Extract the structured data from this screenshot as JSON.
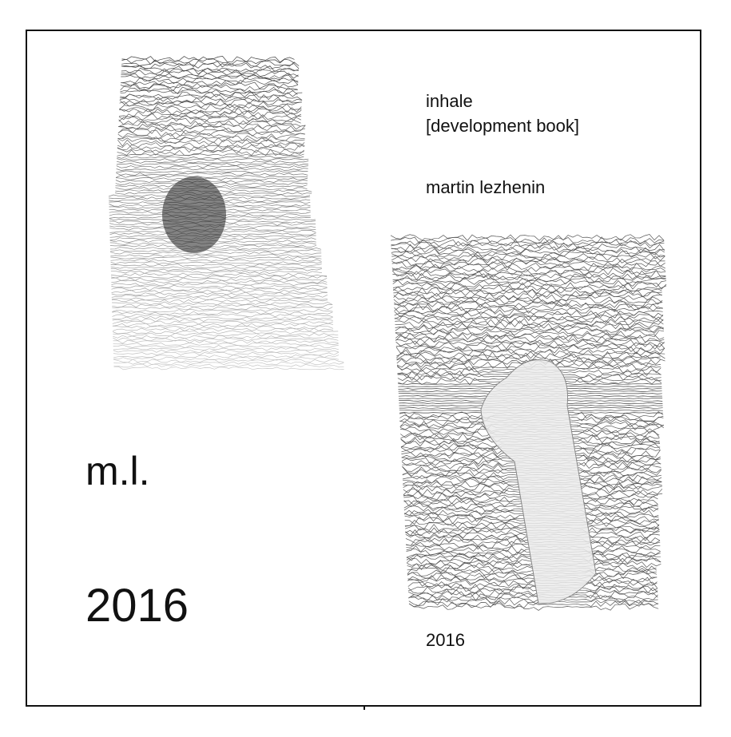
{
  "cover": {
    "title": "inhale",
    "subtitle": "[development book]",
    "author": "martin lezhenin",
    "initials": "m.l.",
    "year_large": "2016",
    "year_small": "2016"
  },
  "colors": {
    "ink": "#111111",
    "paper": "#ffffff",
    "mesh_grey": "#777777"
  }
}
